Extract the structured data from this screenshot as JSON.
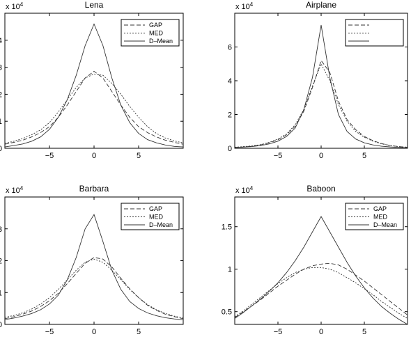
{
  "figure": {
    "axis_multiplier_base": "x 10",
    "axis_multiplier_exp": "4"
  },
  "chart_data": [
    {
      "type": "line",
      "title": "Lena",
      "xlabel": "",
      "ylabel": "",
      "xlim": [
        -10,
        10
      ],
      "ylim": [
        0,
        5
      ],
      "xticks": [
        -5,
        0,
        5
      ],
      "yticks": [
        0,
        1,
        2,
        3,
        4
      ],
      "y_multiplier": "x 10^4",
      "grid": false,
      "legend_position": "top-right",
      "x": [
        -10,
        -9,
        -8,
        -7,
        -6,
        -5,
        -4,
        -3,
        -2,
        -1,
        0,
        1,
        2,
        3,
        4,
        5,
        6,
        7,
        8,
        9,
        10
      ],
      "series": [
        {
          "name": "GAP",
          "style": "dashed",
          "values": [
            0.15,
            0.22,
            0.3,
            0.42,
            0.58,
            0.8,
            1.15,
            1.6,
            2.1,
            2.6,
            2.85,
            2.6,
            2.1,
            1.6,
            1.15,
            0.8,
            0.58,
            0.42,
            0.3,
            0.22,
            0.15
          ]
        },
        {
          "name": "MED",
          "style": "dotted",
          "values": [
            0.18,
            0.26,
            0.36,
            0.5,
            0.68,
            0.95,
            1.35,
            1.8,
            2.25,
            2.6,
            2.75,
            2.7,
            2.4,
            2.0,
            1.55,
            1.15,
            0.8,
            0.55,
            0.38,
            0.27,
            0.2
          ]
        },
        {
          "name": "D–Mean",
          "style": "solid",
          "values": [
            0.05,
            0.1,
            0.16,
            0.26,
            0.42,
            0.7,
            1.15,
            1.8,
            2.7,
            3.8,
            4.6,
            3.8,
            2.6,
            1.6,
            0.95,
            0.55,
            0.32,
            0.2,
            0.12,
            0.07,
            0.05
          ]
        }
      ]
    },
    {
      "type": "line",
      "title": "Airplane",
      "xlabel": "",
      "ylabel": "",
      "xlim": [
        -10,
        10
      ],
      "ylim": [
        0,
        8
      ],
      "xticks": [
        -5,
        0,
        5
      ],
      "yticks": [
        0,
        2,
        4,
        6
      ],
      "y_multiplier": "x 10^4",
      "grid": false,
      "legend_position": "top-right",
      "x": [
        -10,
        -9,
        -8,
        -7,
        -6,
        -5,
        -4,
        -3,
        -2,
        -1,
        0,
        1,
        2,
        3,
        4,
        5,
        6,
        7,
        8,
        9,
        10
      ],
      "series": [
        {
          "name": "",
          "style": "dashed",
          "values": [
            0.05,
            0.08,
            0.12,
            0.2,
            0.32,
            0.5,
            0.8,
            1.3,
            2.2,
            3.6,
            5.2,
            4.5,
            2.8,
            1.7,
            1.1,
            0.7,
            0.45,
            0.28,
            0.16,
            0.1,
            0.06
          ]
        },
        {
          "name": "",
          "style": "dotted",
          "values": [
            0.06,
            0.1,
            0.14,
            0.22,
            0.35,
            0.55,
            0.85,
            1.4,
            2.3,
            3.7,
            5.0,
            4.0,
            2.6,
            1.6,
            1.0,
            0.65,
            0.42,
            0.26,
            0.16,
            0.1,
            0.06
          ]
        },
        {
          "name": "",
          "style": "solid",
          "values": [
            0.04,
            0.07,
            0.1,
            0.16,
            0.26,
            0.42,
            0.7,
            1.2,
            2.3,
            4.2,
            7.3,
            4.2,
            2.0,
            1.0,
            0.55,
            0.32,
            0.2,
            0.12,
            0.08,
            0.05,
            0.03
          ]
        }
      ]
    },
    {
      "type": "line",
      "title": "Barbara",
      "xlabel": "",
      "ylabel": "",
      "xlim": [
        -10,
        10
      ],
      "ylim": [
        0,
        4
      ],
      "xticks": [
        -5,
        0,
        5
      ],
      "yticks": [
        0,
        1,
        2,
        3
      ],
      "y_multiplier": "x 10^4",
      "grid": false,
      "legend_position": "top-right",
      "x": [
        -10,
        -9,
        -8,
        -7,
        -6,
        -5,
        -4,
        -3,
        -2,
        -1,
        0,
        1,
        2,
        3,
        4,
        5,
        6,
        7,
        8,
        9,
        10
      ],
      "series": [
        {
          "name": "GAP",
          "style": "dashed",
          "values": [
            0.18,
            0.24,
            0.32,
            0.42,
            0.56,
            0.74,
            0.98,
            1.28,
            1.6,
            1.92,
            2.1,
            2.05,
            1.8,
            1.45,
            1.12,
            0.84,
            0.6,
            0.44,
            0.32,
            0.24,
            0.18
          ]
        },
        {
          "name": "MED",
          "style": "dotted",
          "values": [
            0.22,
            0.28,
            0.36,
            0.48,
            0.64,
            0.84,
            1.1,
            1.4,
            1.7,
            1.95,
            2.05,
            1.95,
            1.7,
            1.4,
            1.1,
            0.84,
            0.62,
            0.46,
            0.34,
            0.26,
            0.2
          ]
        },
        {
          "name": "D–Mean",
          "style": "solid",
          "values": [
            0.15,
            0.2,
            0.26,
            0.34,
            0.46,
            0.64,
            0.92,
            1.4,
            2.1,
            3.0,
            3.45,
            2.6,
            1.7,
            1.1,
            0.72,
            0.5,
            0.36,
            0.27,
            0.21,
            0.17,
            0.14
          ]
        }
      ]
    },
    {
      "type": "line",
      "title": "Baboon",
      "xlabel": "",
      "ylabel": "",
      "xlim": [
        -10,
        10
      ],
      "ylim": [
        0.35,
        1.85
      ],
      "xticks": [
        -5,
        0,
        5
      ],
      "yticks": [
        0.5,
        1,
        1.5
      ],
      "y_multiplier": "x 10^4",
      "grid": false,
      "legend_position": "top-right",
      "x": [
        -10,
        -9,
        -8,
        -7,
        -6,
        -5,
        -4,
        -3,
        -2,
        -1,
        0,
        1,
        2,
        3,
        4,
        5,
        6,
        7,
        8,
        9,
        10
      ],
      "series": [
        {
          "name": "GAP",
          "style": "dashed",
          "values": [
            0.43,
            0.5,
            0.57,
            0.64,
            0.72,
            0.8,
            0.87,
            0.94,
            1.0,
            1.04,
            1.06,
            1.07,
            1.05,
            1.0,
            0.93,
            0.86,
            0.78,
            0.7,
            0.62,
            0.54,
            0.46
          ]
        },
        {
          "name": "MED",
          "style": "dotted",
          "values": [
            0.44,
            0.51,
            0.59,
            0.67,
            0.75,
            0.83,
            0.9,
            0.96,
            1.0,
            1.02,
            1.02,
            1.0,
            0.96,
            0.9,
            0.84,
            0.77,
            0.7,
            0.62,
            0.55,
            0.48,
            0.42
          ]
        },
        {
          "name": "D–Mean",
          "style": "solid",
          "values": [
            0.42,
            0.49,
            0.57,
            0.65,
            0.74,
            0.84,
            0.96,
            1.1,
            1.26,
            1.44,
            1.62,
            1.44,
            1.26,
            1.08,
            0.92,
            0.78,
            0.66,
            0.56,
            0.48,
            0.41,
            0.35
          ]
        }
      ]
    }
  ]
}
